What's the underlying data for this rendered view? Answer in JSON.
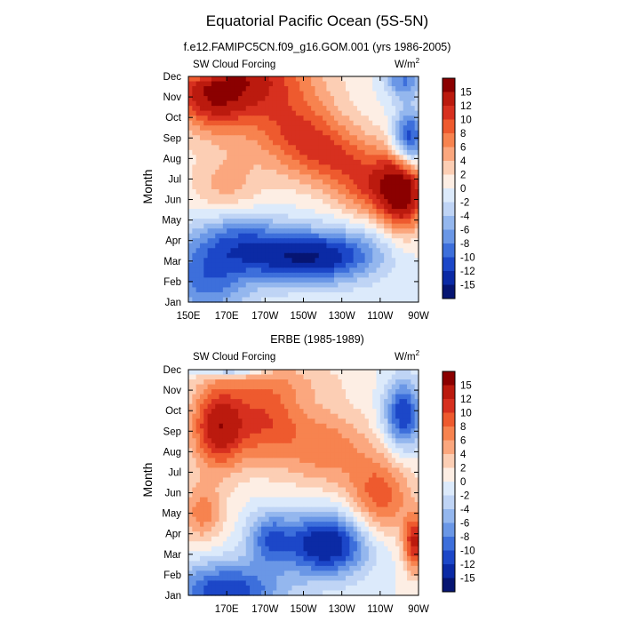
{
  "figure": {
    "title": "Equatorial Pacific Ocean (5S-5N)",
    "colorbar_levels": [
      "15",
      "12",
      "10",
      "8",
      "6",
      "4",
      "2",
      "0",
      "-2",
      "-4",
      "-6",
      "-8",
      "-10",
      "-12",
      "-15"
    ],
    "colorbar_colors": [
      "#8b0000",
      "#bb1a0e",
      "#d7301f",
      "#ee5a2e",
      "#f7834f",
      "#fba77e",
      "#fcceb4",
      "#fdeee4",
      "#dceafb",
      "#bfd4f5",
      "#94b7ee",
      "#6a97e6",
      "#3d6fdb",
      "#1c47c8",
      "#0b2aa5",
      "#061572"
    ]
  },
  "chart_data": [
    {
      "type": "heatmap",
      "subtitle": "f.e12.FAMIPC5CN.f09_g16.GOM.001 (yrs 1986-2005)",
      "panel_label": "SW Cloud Forcing",
      "units_base": "W/m",
      "units_exp": "2",
      "ylabel": "Month",
      "months": [
        "Jan",
        "Feb",
        "Mar",
        "Apr",
        "May",
        "Jun",
        "Jul",
        "Aug",
        "Sep",
        "Oct",
        "Nov",
        "Dec"
      ],
      "xticks": [
        "150E",
        "170E",
        "170W",
        "150W",
        "130W",
        "110W",
        "90W"
      ],
      "xlim": [
        150,
        270
      ],
      "xlim_note": "longitude degrees east (150E to 90W)",
      "values_units": "W/m2",
      "features": [
        {
          "lon": 180,
          "month": 11,
          "value": 12,
          "sx": 25,
          "sy": 1.3
        },
        {
          "lon": 162,
          "month": 9.8,
          "value": 9,
          "sx": 14,
          "sy": 1.2
        },
        {
          "lon": 205,
          "month": 8.5,
          "value": 8,
          "sx": 18,
          "sy": 1.2
        },
        {
          "lon": 225,
          "month": 7,
          "value": 8,
          "sx": 18,
          "sy": 1.1
        },
        {
          "lon": 248,
          "month": 5.5,
          "value": 9,
          "sx": 14,
          "sy": 1.1
        },
        {
          "lon": 262,
          "month": 5.5,
          "value": 15,
          "sx": 8,
          "sy": 1.4
        },
        {
          "lon": 170,
          "month": 5.5,
          "value": 5,
          "sx": 14,
          "sy": 1.4
        },
        {
          "lon": 210,
          "month": 2.2,
          "value": -15,
          "sx": 22,
          "sy": 0.9
        },
        {
          "lon": 160,
          "month": 1.2,
          "value": -9,
          "sx": 16,
          "sy": 1.4
        },
        {
          "lon": 175,
          "month": 3.3,
          "value": -7,
          "sx": 16,
          "sy": 1.0
        },
        {
          "lon": 265,
          "month": 7.8,
          "value": -14,
          "sx": 6,
          "sy": 1.1
        },
        {
          "lon": 262,
          "month": 10.8,
          "value": -8,
          "sx": 7,
          "sy": 0.6
        },
        {
          "lon": 158,
          "month": 11.2,
          "value": -6,
          "sx": 8,
          "sy": 0.3
        },
        {
          "lon": 240,
          "month": 2.5,
          "value": -3,
          "sx": 14,
          "sy": 1.0
        }
      ]
    },
    {
      "type": "heatmap",
      "subtitle": "ERBE (1985-1989)",
      "panel_label": "SW Cloud Forcing",
      "units_base": "W/m",
      "units_exp": "2",
      "ylabel": "Month",
      "months": [
        "Jan",
        "Feb",
        "Mar",
        "Apr",
        "May",
        "Jun",
        "Jul",
        "Aug",
        "Sep",
        "Oct",
        "Nov",
        "Dec"
      ],
      "xticks": [
        "170E",
        "170W",
        "150W",
        "130W",
        "110W",
        "90W"
      ],
      "xlim": [
        150,
        270
      ],
      "xlim_note": "longitude degrees east (150E to 90W)",
      "values_units": "W/m2",
      "features": [
        {
          "lon": 165,
          "month": 8.2,
          "value": 13,
          "sx": 10,
          "sy": 1.5
        },
        {
          "lon": 190,
          "month": 8.5,
          "value": 9,
          "sx": 14,
          "sy": 1.5
        },
        {
          "lon": 222,
          "month": 7.2,
          "value": 7,
          "sx": 16,
          "sy": 1.4
        },
        {
          "lon": 250,
          "month": 4.8,
          "value": 9,
          "sx": 12,
          "sy": 1.5
        },
        {
          "lon": 157,
          "month": 4,
          "value": 7,
          "sx": 8,
          "sy": 1.0
        },
        {
          "lon": 268,
          "month": 2.5,
          "value": 12,
          "sx": 4,
          "sy": 1.0
        },
        {
          "lon": 222,
          "month": 2.5,
          "value": -15,
          "sx": 16,
          "sy": 1.1
        },
        {
          "lon": 192,
          "month": 2.8,
          "value": -8,
          "sx": 8,
          "sy": 0.9
        },
        {
          "lon": 170,
          "month": 0.2,
          "value": -12,
          "sx": 20,
          "sy": 1.0
        },
        {
          "lon": 262,
          "month": 8.8,
          "value": -12,
          "sx": 7,
          "sy": 1.2
        },
        {
          "lon": 172,
          "month": 11.2,
          "value": -12,
          "sx": 12,
          "sy": 0.3
        },
        {
          "lon": 200,
          "month": 10.5,
          "value": 3,
          "sx": 25,
          "sy": 0.8
        }
      ]
    }
  ]
}
